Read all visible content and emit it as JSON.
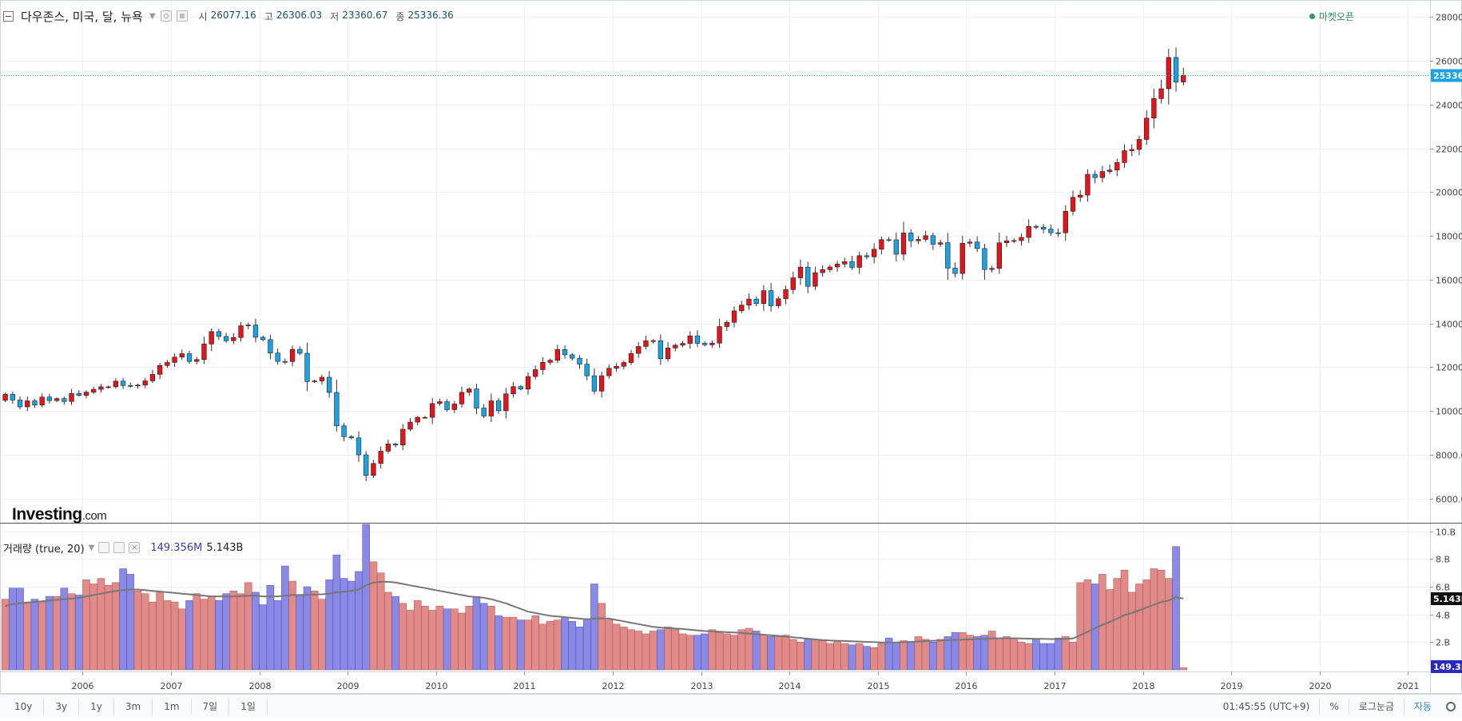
{
  "header": {
    "instrument": "다우존스, 미국, 달, 뉴욕",
    "ohlc": [
      {
        "label": "시",
        "value": "26077.16"
      },
      {
        "label": "고",
        "value": "26306.03"
      },
      {
        "label": "저",
        "value": "23360.67"
      },
      {
        "label": "종",
        "value": "25336.36"
      }
    ],
    "market_status": "마켓오픈",
    "market_status_color": "#2e9b57"
  },
  "volume_legend": {
    "label": "거래량 (true, 20)",
    "value1": "149.356M",
    "value2": "5.143B"
  },
  "logo": {
    "name": "Investing",
    "suffix": ".com"
  },
  "bottom_bar": {
    "ranges": [
      "10y",
      "3y",
      "1y",
      "3m",
      "1m",
      "7일",
      "1일"
    ],
    "time": "01:45:55 (UTC+9)",
    "options": [
      "%",
      "로그눈금",
      "자동"
    ],
    "active_option": "자동"
  },
  "colors": {
    "up": "#e3141c",
    "down": "#1ba3e0",
    "vol_up": "#e08a8a",
    "vol_down": "#8a8ae6",
    "ma_line": "#777777",
    "last_price_line": "#1aa3e0",
    "last_price_badge": "#1aa3e0",
    "vol_badge_dark": "#111111",
    "vol_badge_blue": "#2a2ac0"
  },
  "chart_data": {
    "type": "candlestick",
    "period": "monthly",
    "price_axis": {
      "ticks": [
        6000,
        8000,
        10000,
        12000,
        14000,
        16000,
        18000,
        20000,
        22000,
        24000,
        26000,
        28000
      ],
      "tick_labels": [
        "6000.0",
        "8000.0",
        "10000.0",
        "12000.0",
        "14000.0",
        "16000.0",
        "18000.0",
        "20000.0",
        "22000.0",
        "24000.0",
        "26000.0",
        "28000."
      ],
      "ylim": [
        4900,
        28700
      ]
    },
    "last_price": 25336.36,
    "last_price_label": "25336.",
    "volume_axis": {
      "ticks": [
        2,
        4,
        6,
        8,
        10
      ],
      "tick_labels": [
        "2.B",
        "4.B",
        "6.B",
        "8.B",
        "10.B"
      ],
      "ylim": [
        0,
        10.5
      ],
      "unit": "B"
    },
    "volume_ma_last": "5.143B",
    "volume_last": "149.35",
    "x_axis": {
      "years": [
        2006,
        2007,
        2008,
        2009,
        2010,
        2011,
        2012,
        2013,
        2014,
        2015,
        2016,
        2017,
        2018,
        2019,
        2020,
        2021
      ],
      "year_labels": [
        "2006",
        "2007",
        "2008",
        "2009",
        "2010",
        "2011",
        "2012",
        "2013",
        "2014",
        "2015",
        "2016",
        "2017",
        "2018",
        "2019",
        "2020",
        "2021"
      ],
      "start": "2005-02",
      "end": "2021-04"
    },
    "close": [
      10766,
      10504,
      10193,
      10467,
      10275,
      10641,
      10482,
      10569,
      10440,
      10806,
      10718,
      10865,
      10993,
      11109,
      11109,
      11367,
      11168,
      11150,
      11186,
      11381,
      11679,
      12081,
      12221,
      12463,
      12622,
      12269,
      12354,
      13063,
      13628,
      13409,
      13212,
      13358,
      13896,
      13930,
      13372,
      13265,
      12650,
      12266,
      12263,
      12820,
      12638,
      11350,
      11378,
      11544,
      10851,
      9325,
      8829,
      8776,
      8001,
      7062,
      7609,
      8168,
      8500,
      8447,
      9172,
      9496,
      9712,
      9713,
      10345,
      10428,
      10067,
      10325,
      10857,
      11009,
      10137,
      9774,
      10466,
      10015,
      10788,
      11118,
      11006,
      11578,
      11892,
      12226,
      12320,
      12811,
      12570,
      12414,
      12143,
      11614,
      10913,
      11613,
      11956,
      12046,
      12218,
      12633,
      12952,
      13212,
      13214,
      12393,
      12880,
      13009,
      13091,
      13437,
      13096,
      13026,
      13104,
      13861,
      14054,
      14579,
      14840,
      15116,
      14910,
      15500,
      14810,
      15130,
      15546,
      16086,
      16577,
      15699,
      16322,
      16458,
      16581,
      16717,
      16827,
      16563,
      17098,
      17043,
      17391,
      17828,
      17823,
      17165,
      18133,
      17776,
      17841,
      18011,
      17620,
      17690,
      16528,
      16285,
      17664,
      17720,
      17425,
      16466,
      16517,
      17685,
      17774,
      17787,
      17930,
      18432,
      18400,
      18308,
      18143,
      18142,
      19124,
      19763,
      19864,
      20812,
      20663,
      20941,
      21009,
      21350,
      21891,
      21948,
      22405,
      23377,
      24272,
      24719,
      26149,
      25029,
      25336
    ],
    "open_first": 10490,
    "volume_B": [
      5.1,
      5.9,
      5.9,
      4.9,
      5.1,
      4.9,
      5.3,
      5.3,
      5.9,
      5.5,
      5.4,
      6.5,
      6.2,
      6.6,
      6.1,
      6.3,
      7.3,
      6.9,
      5.7,
      5.5,
      4.9,
      5.6,
      5.0,
      4.9,
      4.4,
      5.0,
      5.5,
      5.1,
      5.3,
      5.0,
      5.5,
      5.7,
      5.5,
      6.3,
      5.6,
      4.7,
      6.1,
      5.0,
      7.5,
      6.4,
      5.4,
      6.0,
      5.7,
      5.1,
      6.5,
      8.3,
      6.6,
      6.4,
      7.1,
      10.5,
      7.8,
      7.0,
      5.6,
      5.3,
      4.8,
      4.3,
      5.0,
      4.6,
      4.3,
      4.6,
      4.4,
      4.4,
      4.1,
      4.6,
      5.3,
      4.8,
      4.6,
      3.9,
      3.8,
      3.8,
      3.6,
      3.6,
      3.9,
      3.3,
      3.5,
      3.6,
      3.8,
      3.5,
      3.1,
      3.7,
      6.2,
      4.8,
      3.6,
      3.3,
      3.1,
      2.9,
      2.8,
      2.6,
      2.8,
      2.9,
      3.1,
      2.9,
      2.6,
      2.5,
      2.5,
      2.6,
      2.9,
      2.7,
      2.6,
      2.5,
      2.9,
      3.0,
      2.8,
      2.5,
      2.4,
      2.4,
      2.5,
      2.2,
      2.0,
      2.2,
      2.2,
      2.1,
      1.9,
      2.1,
      1.9,
      1.8,
      1.9,
      1.7,
      1.6,
      1.9,
      2.3,
      2.0,
      2.1,
      2.0,
      2.4,
      2.2,
      2.0,
      2.2,
      2.4,
      2.7,
      2.7,
      2.5,
      2.4,
      2.5,
      2.8,
      2.3,
      2.4,
      2.3,
      2.0,
      1.9,
      2.2,
      1.9,
      1.9,
      2.3,
      2.4,
      2.0,
      6.3,
      6.5,
      6.2,
      6.9,
      5.8,
      6.6,
      7.2,
      5.6,
      6.2,
      6.5,
      7.3,
      7.2,
      6.6,
      8.9,
      0.15
    ],
    "volume_ma_B": [
      4.6,
      4.75,
      4.8,
      4.85,
      4.9,
      4.95,
      5.0,
      5.05,
      5.1,
      5.15,
      5.2,
      5.3,
      5.4,
      5.5,
      5.6,
      5.7,
      5.75,
      5.8,
      5.8,
      5.75,
      5.7,
      5.65,
      5.6,
      5.55,
      5.5,
      5.45,
      5.4,
      5.35,
      5.3,
      5.3,
      5.3,
      5.3,
      5.32,
      5.35,
      5.35,
      5.3,
      5.3,
      5.3,
      5.35,
      5.4,
      5.4,
      5.42,
      5.44,
      5.45,
      5.5,
      5.6,
      5.65,
      5.7,
      5.8,
      6.1,
      6.3,
      6.35,
      6.35,
      6.3,
      6.2,
      6.1,
      6.0,
      5.9,
      5.8,
      5.7,
      5.6,
      5.5,
      5.4,
      5.3,
      5.25,
      5.2,
      5.1,
      4.95,
      4.8,
      4.6,
      4.4,
      4.2,
      4.1,
      4.0,
      3.9,
      3.85,
      3.8,
      3.75,
      3.7,
      3.65,
      3.7,
      3.72,
      3.7,
      3.6,
      3.5,
      3.4,
      3.3,
      3.2,
      3.1,
      3.05,
      3.0,
      2.98,
      2.95,
      2.9,
      2.85,
      2.8,
      2.78,
      2.76,
      2.72,
      2.7,
      2.66,
      2.62,
      2.58,
      2.54,
      2.5,
      2.45,
      2.4,
      2.35,
      2.3,
      2.25,
      2.2,
      2.15,
      2.12,
      2.1,
      2.08,
      2.06,
      2.04,
      2.02,
      2.0,
      1.98,
      1.97,
      1.98,
      2.0,
      2.02,
      2.04,
      2.07,
      2.1,
      2.12,
      2.14,
      2.16,
      2.18,
      2.2,
      2.22,
      2.24,
      2.26,
      2.28,
      2.28,
      2.28,
      2.27,
      2.25,
      2.24,
      2.23,
      2.22,
      2.22,
      2.24,
      2.26,
      2.5,
      2.75,
      3.0,
      3.25,
      3.45,
      3.7,
      3.95,
      4.1,
      4.3,
      4.5,
      4.7,
      4.9,
      5.0,
      5.25,
      5.14
    ]
  }
}
